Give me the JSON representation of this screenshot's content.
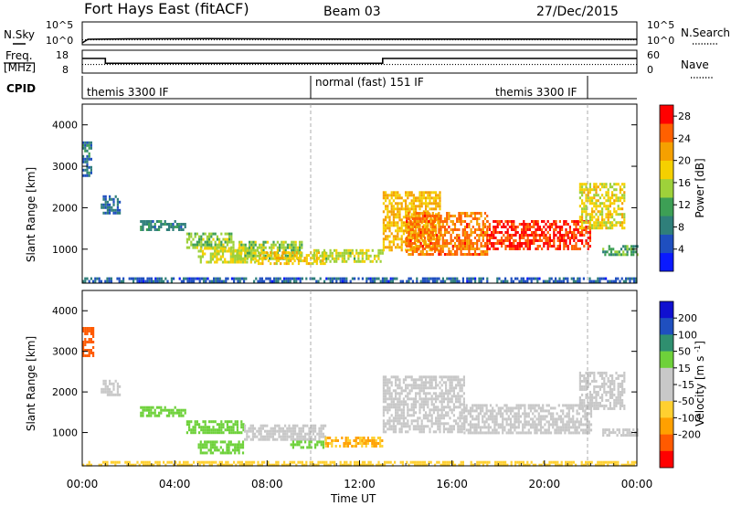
{
  "header": {
    "station": "Fort Hays East (fitACF)",
    "beam": "Beam 03",
    "date": "27/Dec/2015"
  },
  "noise_panel": {
    "left_label": "N.Sky",
    "right_label": "N.Search",
    "tick_top": "10^5",
    "tick_bottom": "10^0",
    "right_tick_top": "10^5",
    "right_tick_bottom": "10^0"
  },
  "freq_panel": {
    "left_label_top": "Freq.",
    "left_label_bottom": "[MHz]",
    "right_label": "Nave",
    "left_ticks": [
      "18",
      "8"
    ],
    "right_ticks": [
      "60",
      "0"
    ]
  },
  "cpid_panel": {
    "label": "CPID",
    "segments": [
      {
        "name": "themis 3300 IF",
        "start": "00:00",
        "end": "10:00"
      },
      {
        "name": "normal (fast) 151 IF",
        "start": "10:00",
        "end": "22:00"
      },
      {
        "name": "themis 3300 IF",
        "start": "22:00",
        "end": "24:00"
      }
    ]
  },
  "x_axis": {
    "label": "Time UT",
    "ticks": [
      "00:00",
      "04:00",
      "08:00",
      "12:00",
      "16:00",
      "20:00",
      "00:00"
    ]
  },
  "colors": {
    "power_scale": [
      "#0a1aff",
      "#1f4fbf",
      "#2f7f7a",
      "#3d9f55",
      "#9ed13a",
      "#f5d000",
      "#f5a000",
      "#ff6000",
      "#ff0000"
    ],
    "velocity_scale": [
      "#ff0000",
      "#ff5a00",
      "#ffa000",
      "#ffd030",
      "#c8c8c8",
      "#c8c8c8",
      "#6ed13a",
      "#2f8f6f",
      "#1f4fbf",
      "#1010d0"
    ]
  },
  "chart_data": [
    {
      "type": "line",
      "title": "Fort Hays East (fitACF)  Beam 03  27/Dec/2015",
      "ylabel": "N.Sky",
      "xlabel": "",
      "xlim": [
        "00:00",
        "24:00"
      ],
      "scale": "log",
      "yticks": [
        "10^0",
        "10^5"
      ],
      "series": [
        {
          "name": "N.Sky",
          "x": [
            "00:00",
            "00:15",
            "02:00",
            "05:30",
            "08:00",
            "12:00",
            "16:00",
            "20:00",
            "24:00"
          ],
          "values": [
            1,
            8,
            10,
            12,
            10,
            9,
            9,
            9,
            8
          ]
        },
        {
          "name": "N.Search",
          "x": [
            "00:00",
            "24:00"
          ],
          "values": [
            6,
            6
          ]
        }
      ]
    },
    {
      "type": "line",
      "ylabel": "Freq. [MHz]",
      "y2label": "Nave",
      "xlim": [
        "00:00",
        "24:00"
      ],
      "ylim": [
        8,
        18
      ],
      "y2lim": [
        0,
        60
      ],
      "series": [
        {
          "name": "Freq.",
          "x": [
            "00:00",
            "01:00",
            "01:00",
            "13:00",
            "13:00",
            "24:00"
          ],
          "values": [
            14.5,
            14.5,
            12.2,
            12.2,
            14.5,
            14.5
          ]
        },
        {
          "name": "Nave",
          "x": [
            "00:00",
            "24:00"
          ],
          "values": [
            22,
            22
          ]
        }
      ]
    },
    {
      "type": "heatmap",
      "ylabel": "Slant Range [km]",
      "xlabel": "",
      "colorbar_label": "Power [dB]",
      "xlim": [
        "00:00",
        "24:00"
      ],
      "ylim": [
        180,
        4500
      ],
      "yticks": [
        1000,
        2000,
        3000,
        4000
      ],
      "colorbar_ticks": [
        4,
        8,
        12,
        16,
        20,
        24,
        28
      ],
      "colorbar_range": [
        0,
        30
      ],
      "regions": [
        {
          "t": [
            0.0,
            0.4
          ],
          "r": [
            2800,
            3600
          ],
          "value": 8
        },
        {
          "t": [
            0.8,
            1.6
          ],
          "r": [
            1900,
            2300
          ],
          "value": 7
        },
        {
          "t": [
            2.5,
            4.5
          ],
          "r": [
            1500,
            1700
          ],
          "value": 9
        },
        {
          "t": [
            4.5,
            6.5
          ],
          "r": [
            1050,
            1400
          ],
          "value": 14
        },
        {
          "t": [
            5.0,
            7.5
          ],
          "r": [
            700,
            1050
          ],
          "value": 17
        },
        {
          "t": [
            6.5,
            9.5
          ],
          "r": [
            750,
            1200
          ],
          "value": 15
        },
        {
          "t": [
            7.5,
            10.5
          ],
          "r": [
            650,
            950
          ],
          "value": 19
        },
        {
          "t": [
            10.0,
            13.0
          ],
          "r": [
            700,
            1000
          ],
          "value": 16
        },
        {
          "t": [
            13.0,
            15.5
          ],
          "r": [
            1000,
            2400
          ],
          "value": 20
        },
        {
          "t": [
            14.0,
            17.5
          ],
          "r": [
            900,
            1900
          ],
          "value": 24
        },
        {
          "t": [
            17.5,
            22.0
          ],
          "r": [
            1000,
            1700
          ],
          "value": 27
        },
        {
          "t": [
            21.5,
            23.5
          ],
          "r": [
            1500,
            2600
          ],
          "value": 18
        },
        {
          "t": [
            22.5,
            24.0
          ],
          "r": [
            900,
            1100
          ],
          "value": 12
        },
        {
          "t": [
            0.0,
            24.0
          ],
          "r": [
            200,
            320
          ],
          "value": 6
        }
      ]
    },
    {
      "type": "heatmap",
      "ylabel": "Slant Range [km]",
      "xlabel": "Time UT",
      "colorbar_label": "Velocity [m s^-1]",
      "xlim": [
        "00:00",
        "24:00"
      ],
      "ylim": [
        180,
        4500
      ],
      "yticks": [
        1000,
        2000,
        3000,
        4000
      ],
      "colorbar_ticks": [
        200,
        100,
        50,
        15,
        -15,
        -50,
        -100,
        -200
      ],
      "regions": [
        {
          "t": [
            0.0,
            0.5
          ],
          "r": [
            2900,
            3600
          ],
          "value": -120
        },
        {
          "t": [
            0.8,
            1.6
          ],
          "r": [
            1900,
            2300
          ],
          "value": 0
        },
        {
          "t": [
            2.5,
            4.5
          ],
          "r": [
            1400,
            1650
          ],
          "value": 30
        },
        {
          "t": [
            4.5,
            7.0
          ],
          "r": [
            1000,
            1300
          ],
          "value": 20
        },
        {
          "t": [
            5.0,
            7.0
          ],
          "r": [
            500,
            800
          ],
          "value": 25
        },
        {
          "t": [
            7.0,
            10.5
          ],
          "r": [
            800,
            1200
          ],
          "value": 5
        },
        {
          "t": [
            9.0,
            10.5
          ],
          "r": [
            600,
            800
          ],
          "value": 30
        },
        {
          "t": [
            10.5,
            13.0
          ],
          "r": [
            650,
            900
          ],
          "value": -50
        },
        {
          "t": [
            13.0,
            16.5
          ],
          "r": [
            1000,
            2400
          ],
          "value": 0
        },
        {
          "t": [
            16.5,
            22.0
          ],
          "r": [
            1000,
            1700
          ],
          "value": 0
        },
        {
          "t": [
            21.5,
            23.5
          ],
          "r": [
            1600,
            2500
          ],
          "value": 0
        },
        {
          "t": [
            22.5,
            24.0
          ],
          "r": [
            900,
            1100
          ],
          "value": 0
        },
        {
          "t": [
            0.0,
            24.0
          ],
          "r": [
            200,
            300
          ],
          "value": -40
        }
      ]
    }
  ]
}
